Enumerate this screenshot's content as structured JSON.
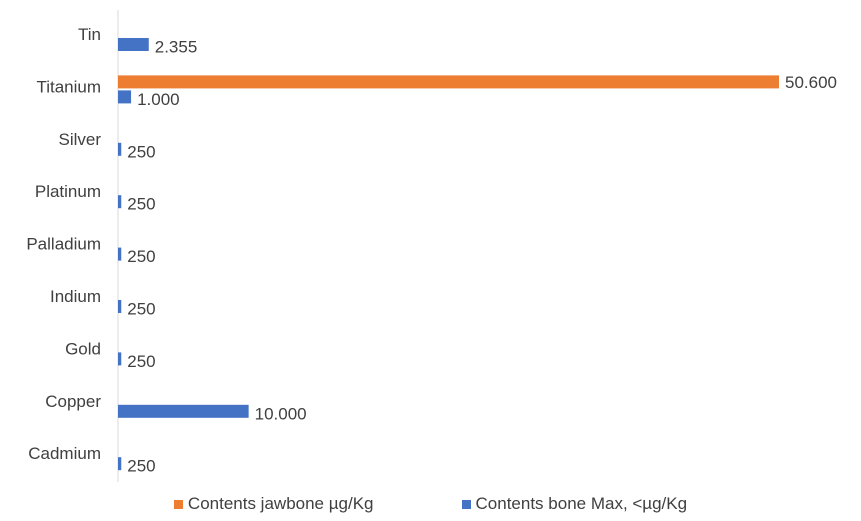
{
  "chart_data": {
    "type": "bar",
    "orientation": "horizontal",
    "categories": [
      "Tin",
      "Titanium",
      "Silver",
      "Platinum",
      "Palladium",
      "Indium",
      "Gold",
      "Copper",
      "Cadmium"
    ],
    "series": [
      {
        "name": "Contents jawbone µg/Kg",
        "color": "#ED7D31",
        "values": [
          null,
          50600,
          null,
          null,
          null,
          null,
          null,
          null,
          null
        ],
        "labels": [
          "",
          "50.600",
          "",
          "",
          "",
          "",
          "",
          "",
          ""
        ]
      },
      {
        "name": "Contents bone Max, <µg/Kg",
        "color": "#4472C4",
        "values": [
          2355,
          1000,
          250,
          250,
          250,
          250,
          250,
          10000,
          250
        ],
        "labels": [
          "2.355",
          "1.000",
          "250",
          "250",
          "250",
          "250",
          "250",
          "10.000",
          "250"
        ]
      }
    ],
    "xlim": [
      0,
      50600
    ],
    "grid": false,
    "legend_position": "bottom"
  }
}
